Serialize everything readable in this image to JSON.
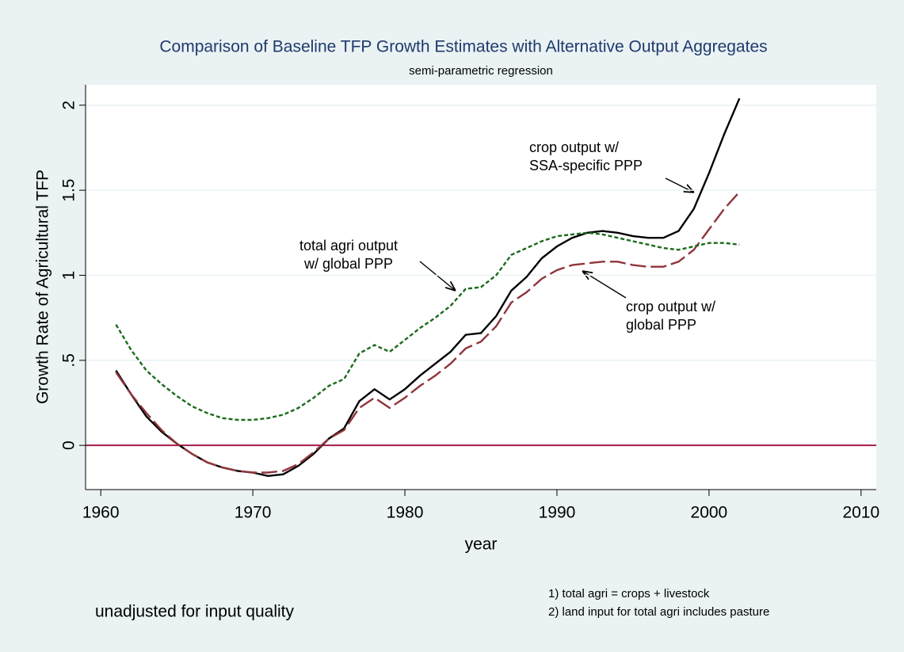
{
  "chart_data": {
    "type": "line",
    "title": "Comparison of Baseline TFP Growth Estimates with Alternative Output Aggregates",
    "subtitle": "semi-parametric regression",
    "xlabel": "year",
    "ylabel": "Growth Rate of Agricultural TFP",
    "x": [
      1961,
      1962,
      1963,
      1964,
      1965,
      1966,
      1967,
      1968,
      1969,
      1970,
      1971,
      1972,
      1973,
      1974,
      1975,
      1976,
      1977,
      1978,
      1979,
      1980,
      1981,
      1982,
      1983,
      1984,
      1985,
      1986,
      1987,
      1988,
      1989,
      1990,
      1991,
      1992,
      1993,
      1994,
      1995,
      1996,
      1997,
      1998,
      1999,
      2000,
      2001,
      2002
    ],
    "series": [
      {
        "name": "crop output w/ SSA-specific PPP",
        "color": "#000000",
        "dash": "solid",
        "values": [
          0.44,
          0.3,
          0.17,
          0.08,
          0.01,
          -0.05,
          -0.1,
          -0.13,
          -0.15,
          -0.16,
          -0.18,
          -0.17,
          -0.12,
          -0.05,
          0.04,
          0.1,
          0.26,
          0.33,
          0.27,
          0.33,
          0.41,
          0.48,
          0.55,
          0.65,
          0.66,
          0.76,
          0.91,
          0.99,
          1.1,
          1.17,
          1.22,
          1.25,
          1.26,
          1.25,
          1.23,
          1.22,
          1.22,
          1.26,
          1.39,
          1.6,
          1.83,
          2.04
        ]
      },
      {
        "name": "crop output w/ global PPP",
        "color": "#90353b",
        "dash": "long",
        "values": [
          0.43,
          0.3,
          0.19,
          0.09,
          0.01,
          -0.05,
          -0.1,
          -0.13,
          -0.15,
          -0.16,
          -0.16,
          -0.15,
          -0.11,
          -0.04,
          0.04,
          0.09,
          0.22,
          0.28,
          0.22,
          0.28,
          0.35,
          0.41,
          0.48,
          0.57,
          0.61,
          0.7,
          0.84,
          0.9,
          0.98,
          1.03,
          1.06,
          1.07,
          1.08,
          1.08,
          1.06,
          1.05,
          1.05,
          1.08,
          1.15,
          1.27,
          1.39,
          1.49
        ]
      },
      {
        "name": "total agri output w/ global PPP",
        "color": "#1a6b1a",
        "dash": "short",
        "values": [
          0.71,
          0.56,
          0.44,
          0.36,
          0.29,
          0.23,
          0.19,
          0.16,
          0.15,
          0.15,
          0.16,
          0.18,
          0.22,
          0.28,
          0.35,
          0.39,
          0.54,
          0.59,
          0.55,
          0.62,
          0.69,
          0.75,
          0.82,
          0.92,
          0.93,
          1.0,
          1.12,
          1.16,
          1.2,
          1.23,
          1.24,
          1.25,
          1.24,
          1.22,
          1.2,
          1.18,
          1.16,
          1.15,
          1.17,
          1.19,
          1.19,
          1.18
        ]
      }
    ],
    "annotations": [
      [
        "crop output w/",
        "SSA-specific PPP"
      ],
      [
        "total agri output",
        "w/ global PPP"
      ],
      [
        "crop output w/",
        "global PPP"
      ]
    ],
    "notes": [
      "1) total agri = crops + livestock",
      "2) land input for total agri includes pasture"
    ],
    "caption": "unadjusted for input quality",
    "xlim": [
      1959,
      2011
    ],
    "xticks": [
      1960,
      1970,
      1980,
      1990,
      2000,
      2010
    ],
    "ylim": [
      -0.26,
      2.12
    ],
    "yticks": [
      0,
      {
        "value": 0.5,
        "label": ".5"
      },
      1,
      1.5,
      2
    ],
    "yline": 0,
    "yline_color": "#a31d4a",
    "grid": true
  }
}
